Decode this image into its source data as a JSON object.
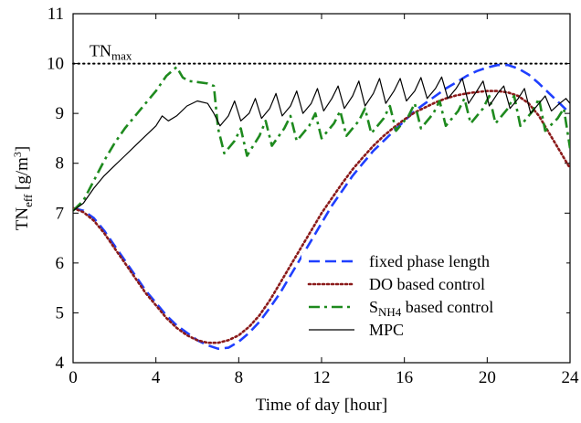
{
  "chart_data": {
    "type": "line",
    "xlabel": "Time of day [hour]",
    "ylabel": {
      "main": "TN",
      "sub": "eff",
      "unit_prefix": "[g/m",
      "unit_sup": "3",
      "unit_suffix": "]"
    },
    "xlim": [
      0,
      24
    ],
    "ylim": [
      4,
      11
    ],
    "x_ticks": [
      "0",
      "4",
      "8",
      "12",
      "16",
      "20",
      "24"
    ],
    "y_ticks": [
      "4",
      "5",
      "6",
      "7",
      "8",
      "9",
      "10",
      "11"
    ],
    "grid": false,
    "legend_position": "bottom-right",
    "annotations": [
      {
        "text_main": "TN",
        "text_sub": "max",
        "type": "hline",
        "y": 10
      }
    ],
    "series": [
      {
        "name": "fixed phase length",
        "label_main": "fixed phase length",
        "color": "#1f3fff",
        "style": "dashed",
        "points": [
          [
            0,
            7.1
          ],
          [
            0.5,
            7.05
          ],
          [
            1,
            6.9
          ],
          [
            1.5,
            6.65
          ],
          [
            2,
            6.35
          ],
          [
            2.5,
            6.05
          ],
          [
            3,
            5.75
          ],
          [
            3.5,
            5.45
          ],
          [
            4,
            5.2
          ],
          [
            4.5,
            4.95
          ],
          [
            5,
            4.75
          ],
          [
            5.5,
            4.6
          ],
          [
            6,
            4.45
          ],
          [
            6.5,
            4.35
          ],
          [
            7,
            4.28
          ],
          [
            7.5,
            4.3
          ],
          [
            8,
            4.42
          ],
          [
            8.5,
            4.6
          ],
          [
            9,
            4.82
          ],
          [
            9.5,
            5.1
          ],
          [
            10,
            5.4
          ],
          [
            10.5,
            5.75
          ],
          [
            11,
            6.1
          ],
          [
            11.5,
            6.45
          ],
          [
            12,
            6.8
          ],
          [
            12.5,
            7.15
          ],
          [
            13,
            7.45
          ],
          [
            13.5,
            7.75
          ],
          [
            14,
            8.0
          ],
          [
            14.5,
            8.25
          ],
          [
            15,
            8.45
          ],
          [
            15.5,
            8.65
          ],
          [
            16,
            8.85
          ],
          [
            16.5,
            9.05
          ],
          [
            17,
            9.2
          ],
          [
            17.5,
            9.35
          ],
          [
            18,
            9.5
          ],
          [
            18.5,
            9.62
          ],
          [
            19,
            9.75
          ],
          [
            19.5,
            9.85
          ],
          [
            20,
            9.92
          ],
          [
            20.5,
            9.97
          ],
          [
            21,
            9.97
          ],
          [
            21.5,
            9.9
          ],
          [
            22,
            9.78
          ],
          [
            22.5,
            9.6
          ],
          [
            23,
            9.4
          ],
          [
            23.5,
            9.2
          ],
          [
            24,
            9.0
          ]
        ]
      },
      {
        "name": "DO based control",
        "label_main": "DO based control",
        "color": "#8b1a1a",
        "style": "dotted",
        "points": [
          [
            0,
            7.1
          ],
          [
            0.5,
            7.02
          ],
          [
            1,
            6.85
          ],
          [
            1.5,
            6.6
          ],
          [
            2,
            6.3
          ],
          [
            2.5,
            6.0
          ],
          [
            3,
            5.7
          ],
          [
            3.5,
            5.4
          ],
          [
            4,
            5.15
          ],
          [
            4.5,
            4.9
          ],
          [
            5,
            4.7
          ],
          [
            5.5,
            4.55
          ],
          [
            6,
            4.45
          ],
          [
            6.5,
            4.4
          ],
          [
            7,
            4.4
          ],
          [
            7.5,
            4.45
          ],
          [
            8,
            4.55
          ],
          [
            8.5,
            4.72
          ],
          [
            9,
            4.95
          ],
          [
            9.5,
            5.25
          ],
          [
            10,
            5.6
          ],
          [
            10.5,
            5.95
          ],
          [
            11,
            6.3
          ],
          [
            11.5,
            6.65
          ],
          [
            12,
            7.0
          ],
          [
            12.5,
            7.3
          ],
          [
            13,
            7.6
          ],
          [
            13.5,
            7.88
          ],
          [
            14,
            8.12
          ],
          [
            14.5,
            8.35
          ],
          [
            15,
            8.55
          ],
          [
            15.5,
            8.72
          ],
          [
            16,
            8.88
          ],
          [
            16.5,
            9.02
          ],
          [
            17,
            9.12
          ],
          [
            17.5,
            9.22
          ],
          [
            18,
            9.3
          ],
          [
            18.5,
            9.36
          ],
          [
            19,
            9.4
          ],
          [
            19.5,
            9.43
          ],
          [
            20,
            9.45
          ],
          [
            20.5,
            9.45
          ],
          [
            21,
            9.42
          ],
          [
            21.5,
            9.35
          ],
          [
            22,
            9.2
          ],
          [
            22.5,
            8.95
          ],
          [
            23,
            8.6
          ],
          [
            23.5,
            8.25
          ],
          [
            24,
            7.9
          ]
        ]
      },
      {
        "name": "SNH4 based control",
        "label_main": "S",
        "label_sub": "NH4",
        "label_suffix": " based control",
        "color": "#1e8a1e",
        "style": "dashdot",
        "points": [
          [
            0,
            7.05
          ],
          [
            0.5,
            7.25
          ],
          [
            1,
            7.65
          ],
          [
            1.5,
            8.05
          ],
          [
            2,
            8.4
          ],
          [
            2.5,
            8.7
          ],
          [
            3,
            8.95
          ],
          [
            3.5,
            9.2
          ],
          [
            4,
            9.45
          ],
          [
            4.5,
            9.75
          ],
          [
            5,
            9.93
          ],
          [
            5.3,
            9.72
          ],
          [
            5.6,
            9.65
          ],
          [
            6,
            9.63
          ],
          [
            6.5,
            9.6
          ],
          [
            6.8,
            9.55
          ],
          [
            7.0,
            8.7
          ],
          [
            7.3,
            8.2
          ],
          [
            7.8,
            8.45
          ],
          [
            8.1,
            8.7
          ],
          [
            8.4,
            8.15
          ],
          [
            9.0,
            8.55
          ],
          [
            9.3,
            8.85
          ],
          [
            9.6,
            8.35
          ],
          [
            10.2,
            8.7
          ],
          [
            10.5,
            8.95
          ],
          [
            10.8,
            8.45
          ],
          [
            11.4,
            8.75
          ],
          [
            11.7,
            9.0
          ],
          [
            12.0,
            8.5
          ],
          [
            12.6,
            8.8
          ],
          [
            12.9,
            9.05
          ],
          [
            13.2,
            8.55
          ],
          [
            13.8,
            8.85
          ],
          [
            14.1,
            9.1
          ],
          [
            14.4,
            8.6
          ],
          [
            15.0,
            8.9
          ],
          [
            15.3,
            9.15
          ],
          [
            15.6,
            8.65
          ],
          [
            16.2,
            8.95
          ],
          [
            16.5,
            9.2
          ],
          [
            16.8,
            8.7
          ],
          [
            17.4,
            9.0
          ],
          [
            17.7,
            9.25
          ],
          [
            18.0,
            8.75
          ],
          [
            18.6,
            9.05
          ],
          [
            18.9,
            9.3
          ],
          [
            19.2,
            8.8
          ],
          [
            19.8,
            9.1
          ],
          [
            20.1,
            9.35
          ],
          [
            20.4,
            8.8
          ],
          [
            21.0,
            9.1
          ],
          [
            21.3,
            9.35
          ],
          [
            21.6,
            8.75
          ],
          [
            22.2,
            9.05
          ],
          [
            22.5,
            9.3
          ],
          [
            22.8,
            8.65
          ],
          [
            23.4,
            8.9
          ],
          [
            23.7,
            9.1
          ],
          [
            24,
            8.3
          ]
        ]
      },
      {
        "name": "MPC",
        "label_main": "MPC",
        "color": "#000000",
        "style": "solid",
        "points": [
          [
            0,
            7.05
          ],
          [
            0.5,
            7.2
          ],
          [
            1,
            7.5
          ],
          [
            1.5,
            7.75
          ],
          [
            2,
            7.95
          ],
          [
            2.5,
            8.15
          ],
          [
            3,
            8.35
          ],
          [
            3.5,
            8.55
          ],
          [
            4,
            8.75
          ],
          [
            4.3,
            8.95
          ],
          [
            4.6,
            8.85
          ],
          [
            5.0,
            8.95
          ],
          [
            5.5,
            9.15
          ],
          [
            6.0,
            9.25
          ],
          [
            6.5,
            9.2
          ],
          [
            6.8,
            9.0
          ],
          [
            7.1,
            8.75
          ],
          [
            7.5,
            8.95
          ],
          [
            7.8,
            9.25
          ],
          [
            8.1,
            8.85
          ],
          [
            8.5,
            9.0
          ],
          [
            8.8,
            9.3
          ],
          [
            9.1,
            8.9
          ],
          [
            9.5,
            9.1
          ],
          [
            9.8,
            9.4
          ],
          [
            10.1,
            8.95
          ],
          [
            10.5,
            9.15
          ],
          [
            10.8,
            9.45
          ],
          [
            11.1,
            9.0
          ],
          [
            11.5,
            9.2
          ],
          [
            11.8,
            9.5
          ],
          [
            12.1,
            9.05
          ],
          [
            12.5,
            9.3
          ],
          [
            12.8,
            9.55
          ],
          [
            13.1,
            9.1
          ],
          [
            13.5,
            9.35
          ],
          [
            13.8,
            9.65
          ],
          [
            14.1,
            9.15
          ],
          [
            14.5,
            9.4
          ],
          [
            14.8,
            9.7
          ],
          [
            15.1,
            9.2
          ],
          [
            15.5,
            9.45
          ],
          [
            15.8,
            9.7
          ],
          [
            16.1,
            9.25
          ],
          [
            16.5,
            9.45
          ],
          [
            16.8,
            9.72
          ],
          [
            17.1,
            9.3
          ],
          [
            17.5,
            9.5
          ],
          [
            17.8,
            9.73
          ],
          [
            18.1,
            9.3
          ],
          [
            18.5,
            9.5
          ],
          [
            18.8,
            9.7
          ],
          [
            19.1,
            9.2
          ],
          [
            19.5,
            9.45
          ],
          [
            19.8,
            9.65
          ],
          [
            20.1,
            9.15
          ],
          [
            20.5,
            9.4
          ],
          [
            20.8,
            9.55
          ],
          [
            21.1,
            9.1
          ],
          [
            21.5,
            9.3
          ],
          [
            21.8,
            9.5
          ],
          [
            22.1,
            9.0
          ],
          [
            22.5,
            9.2
          ],
          [
            22.8,
            9.35
          ],
          [
            23.1,
            9.05
          ],
          [
            23.5,
            9.2
          ],
          [
            23.8,
            9.3
          ],
          [
            24,
            9.2
          ]
        ]
      }
    ]
  }
}
